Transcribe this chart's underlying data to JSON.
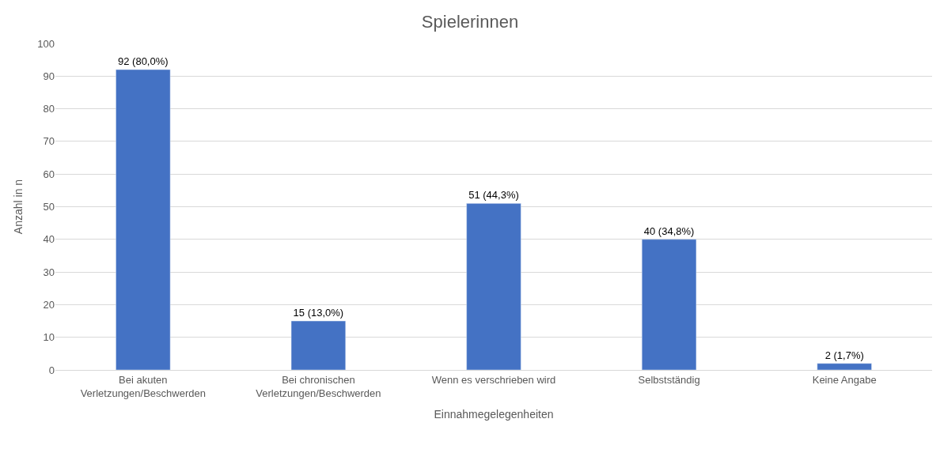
{
  "chart_data": {
    "type": "bar",
    "title": "Spielerinnen",
    "xlabel": "Einnahmegelegenheiten",
    "ylabel": "Anzahl in n",
    "categories": [
      "Bei akuten Verletzungen/Beschwerden",
      "Bei chronischen Verletzungen/Beschwerden",
      "Wenn es verschrieben wird",
      "Selbstständig",
      "Keine Angabe"
    ],
    "values": [
      92,
      15,
      51,
      40,
      2
    ],
    "value_labels": [
      "92 (80,0%)",
      "15 (13,0%)",
      "51 (44,3%)",
      "40 (34,8%)",
      "2 (1,7%)"
    ],
    "color": "#4472c4",
    "ylim": [
      0,
      100
    ],
    "yticks": [
      0,
      10,
      20,
      30,
      40,
      50,
      60,
      70,
      80,
      90,
      100
    ],
    "grid": "y",
    "legend": false
  }
}
